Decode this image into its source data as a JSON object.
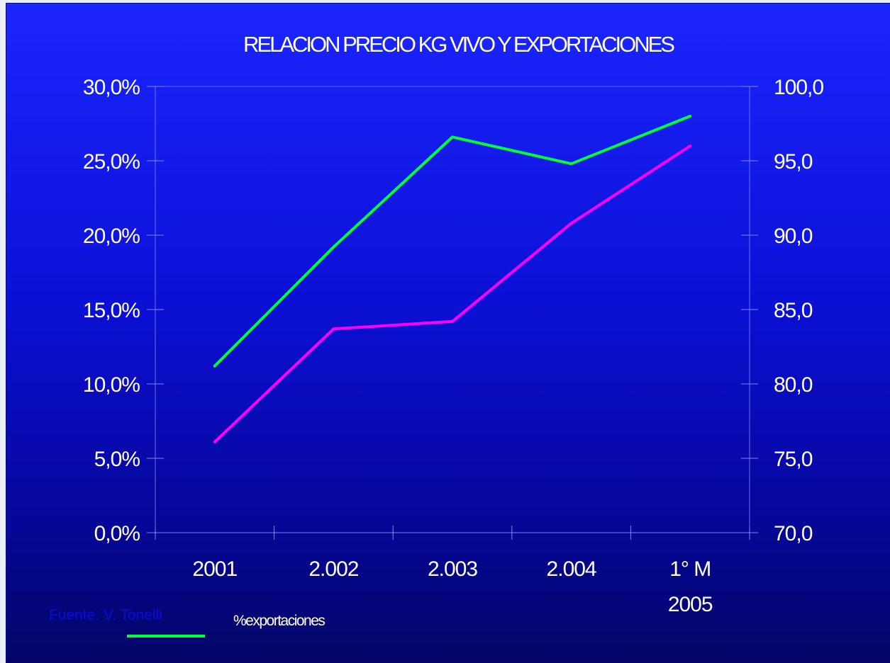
{
  "chart_data": {
    "type": "line",
    "title": "RELACION PRECIO KG VIVO Y EXPORTACIONES",
    "categories": [
      [
        "2001"
      ],
      [
        "2.002"
      ],
      [
        "2.003"
      ],
      [
        "2.004"
      ],
      [
        "1° M",
        "2005"
      ]
    ],
    "y_left": {
      "min": 0,
      "max": 30,
      "step": 5,
      "tick_labels": [
        "0,0%",
        "5,0%",
        "10,0%",
        "15,0%",
        "20,0%",
        "25,0%",
        "30,0%"
      ]
    },
    "y_right": {
      "min": 70,
      "max": 100,
      "step": 5,
      "tick_labels": [
        "70,0",
        "75,0",
        "80,0",
        "85,0",
        "90,0",
        "95,0",
        "100,0"
      ]
    },
    "series": [
      {
        "name": "%exportaciones",
        "axis": "left",
        "color": "#00ff33",
        "values": [
          11.2,
          19.2,
          26.6,
          24.8,
          28.0
        ]
      },
      {
        "name": "",
        "axis": "right",
        "color": "#ff00ff",
        "values": [
          76.1,
          83.7,
          84.2,
          90.8,
          96.0
        ]
      }
    ],
    "source": "Fuente: V. Tonelli",
    "legend": [
      {
        "label": "%exportaciones",
        "color": "#00ff33"
      }
    ],
    "grid": false
  }
}
